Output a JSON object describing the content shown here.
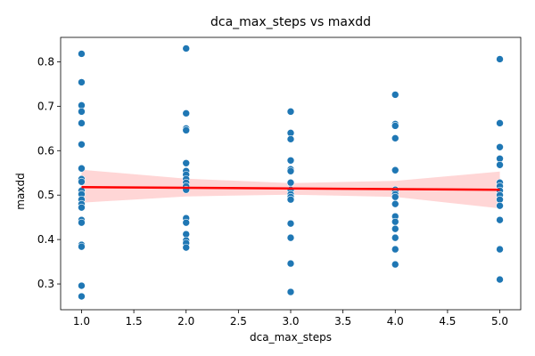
{
  "chart_data": {
    "type": "scatter",
    "title": "dca_max_steps vs maxdd",
    "xlabel": "dca_max_steps",
    "ylabel": "maxdd",
    "xlim": [
      0.8,
      5.2
    ],
    "ylim": [
      0.242,
      0.855
    ],
    "xticks": [
      "1.0",
      "1.5",
      "2.0",
      "2.5",
      "3.0",
      "3.5",
      "4.0",
      "4.5",
      "5.0"
    ],
    "yticks": [
      "0.3",
      "0.4",
      "0.5",
      "0.6",
      "0.7",
      "0.8"
    ],
    "grid": false,
    "colors": {
      "points": "#1f77b4",
      "regression": "#ff0000",
      "band": "#ffcccc"
    },
    "points": [
      {
        "x": 1.0,
        "y": 0.818
      },
      {
        "x": 1.0,
        "y": 0.754
      },
      {
        "x": 1.0,
        "y": 0.702
      },
      {
        "x": 1.0,
        "y": 0.688
      },
      {
        "x": 1.0,
        "y": 0.662
      },
      {
        "x": 1.0,
        "y": 0.614
      },
      {
        "x": 1.0,
        "y": 0.56
      },
      {
        "x": 1.0,
        "y": 0.536
      },
      {
        "x": 1.0,
        "y": 0.53
      },
      {
        "x": 1.0,
        "y": 0.51
      },
      {
        "x": 1.0,
        "y": 0.502
      },
      {
        "x": 1.0,
        "y": 0.49
      },
      {
        "x": 1.0,
        "y": 0.48
      },
      {
        "x": 1.0,
        "y": 0.472
      },
      {
        "x": 1.0,
        "y": 0.444
      },
      {
        "x": 1.0,
        "y": 0.438
      },
      {
        "x": 1.0,
        "y": 0.388
      },
      {
        "x": 1.0,
        "y": 0.384
      },
      {
        "x": 1.0,
        "y": 0.296
      },
      {
        "x": 1.0,
        "y": 0.272
      },
      {
        "x": 2.0,
        "y": 0.83
      },
      {
        "x": 2.0,
        "y": 0.684
      },
      {
        "x": 2.0,
        "y": 0.65
      },
      {
        "x": 2.0,
        "y": 0.646
      },
      {
        "x": 2.0,
        "y": 0.572
      },
      {
        "x": 2.0,
        "y": 0.554
      },
      {
        "x": 2.0,
        "y": 0.546
      },
      {
        "x": 2.0,
        "y": 0.536
      },
      {
        "x": 2.0,
        "y": 0.528
      },
      {
        "x": 2.0,
        "y": 0.52
      },
      {
        "x": 2.0,
        "y": 0.512
      },
      {
        "x": 2.0,
        "y": 0.448
      },
      {
        "x": 2.0,
        "y": 0.438
      },
      {
        "x": 2.0,
        "y": 0.412
      },
      {
        "x": 2.0,
        "y": 0.398
      },
      {
        "x": 2.0,
        "y": 0.392
      },
      {
        "x": 2.0,
        "y": 0.382
      },
      {
        "x": 3.0,
        "y": 0.688
      },
      {
        "x": 3.0,
        "y": 0.64
      },
      {
        "x": 3.0,
        "y": 0.626
      },
      {
        "x": 3.0,
        "y": 0.578
      },
      {
        "x": 3.0,
        "y": 0.558
      },
      {
        "x": 3.0,
        "y": 0.554
      },
      {
        "x": 3.0,
        "y": 0.528
      },
      {
        "x": 3.0,
        "y": 0.512
      },
      {
        "x": 3.0,
        "y": 0.502
      },
      {
        "x": 3.0,
        "y": 0.496
      },
      {
        "x": 3.0,
        "y": 0.49
      },
      {
        "x": 3.0,
        "y": 0.436
      },
      {
        "x": 3.0,
        "y": 0.404
      },
      {
        "x": 3.0,
        "y": 0.346
      },
      {
        "x": 3.0,
        "y": 0.282
      },
      {
        "x": 4.0,
        "y": 0.726
      },
      {
        "x": 4.0,
        "y": 0.66
      },
      {
        "x": 4.0,
        "y": 0.656
      },
      {
        "x": 4.0,
        "y": 0.628
      },
      {
        "x": 4.0,
        "y": 0.556
      },
      {
        "x": 4.0,
        "y": 0.512
      },
      {
        "x": 4.0,
        "y": 0.508
      },
      {
        "x": 4.0,
        "y": 0.502
      },
      {
        "x": 4.0,
        "y": 0.496
      },
      {
        "x": 4.0,
        "y": 0.48
      },
      {
        "x": 4.0,
        "y": 0.452
      },
      {
        "x": 4.0,
        "y": 0.44
      },
      {
        "x": 4.0,
        "y": 0.424
      },
      {
        "x": 4.0,
        "y": 0.404
      },
      {
        "x": 4.0,
        "y": 0.378
      },
      {
        "x": 4.0,
        "y": 0.344
      },
      {
        "x": 5.0,
        "y": 0.806
      },
      {
        "x": 5.0,
        "y": 0.662
      },
      {
        "x": 5.0,
        "y": 0.608
      },
      {
        "x": 5.0,
        "y": 0.582
      },
      {
        "x": 5.0,
        "y": 0.568
      },
      {
        "x": 5.0,
        "y": 0.528
      },
      {
        "x": 5.0,
        "y": 0.52
      },
      {
        "x": 5.0,
        "y": 0.51
      },
      {
        "x": 5.0,
        "y": 0.5
      },
      {
        "x": 5.0,
        "y": 0.49
      },
      {
        "x": 5.0,
        "y": 0.476
      },
      {
        "x": 5.0,
        "y": 0.444
      },
      {
        "x": 5.0,
        "y": 0.378
      },
      {
        "x": 5.0,
        "y": 0.31
      }
    ],
    "regression": {
      "line": [
        {
          "x": 1.0,
          "y": 0.518
        },
        {
          "x": 5.0,
          "y": 0.512
        }
      ],
      "ci_band": [
        {
          "x": 1.0,
          "lo": 0.483,
          "hi": 0.557
        },
        {
          "x": 2.0,
          "lo": 0.497,
          "hi": 0.537
        },
        {
          "x": 3.0,
          "lo": 0.501,
          "hi": 0.527
        },
        {
          "x": 4.0,
          "lo": 0.496,
          "hi": 0.532
        },
        {
          "x": 5.0,
          "lo": 0.47,
          "hi": 0.553
        }
      ]
    }
  }
}
